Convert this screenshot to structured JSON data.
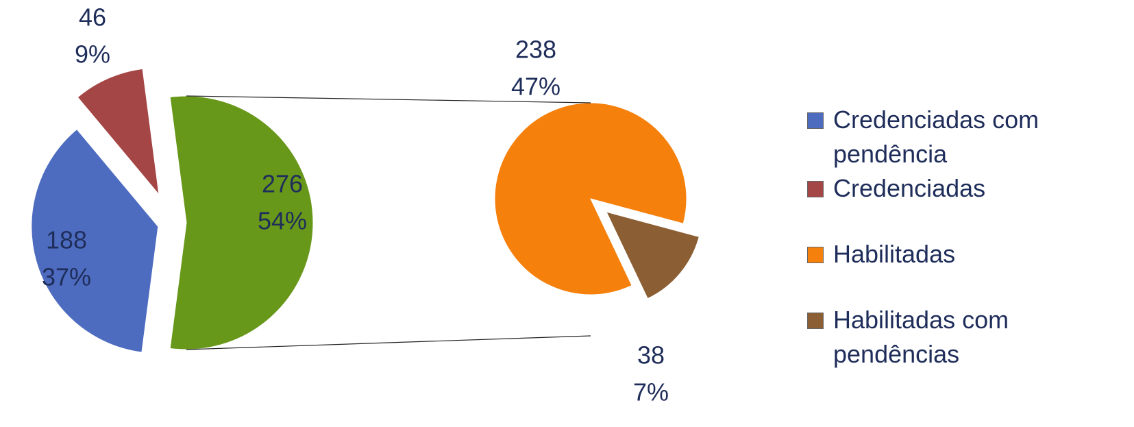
{
  "chart_data": {
    "type": "pie-of-pie",
    "slices": [
      {
        "name": "Credenciadas com pendência",
        "color": "#4d6cc0",
        "value": 188,
        "percent": 37,
        "percent_label": "37%"
      },
      {
        "name": "Credenciadas",
        "color": "#a54646",
        "value": 46,
        "percent": 9,
        "percent_label": "9%"
      }
    ],
    "group": {
      "color": "#68981a",
      "value": 276,
      "percent": 54,
      "percent_label": "54%"
    },
    "group_slices": [
      {
        "name": "Habilitadas",
        "color": "#f5800c",
        "value": 238,
        "percent": 47,
        "percent_label": "47%"
      },
      {
        "name": "Habilitadas com pendências",
        "color": "#8b5e34",
        "value": 38,
        "percent": 7,
        "percent_label": "7%"
      }
    ]
  }
}
